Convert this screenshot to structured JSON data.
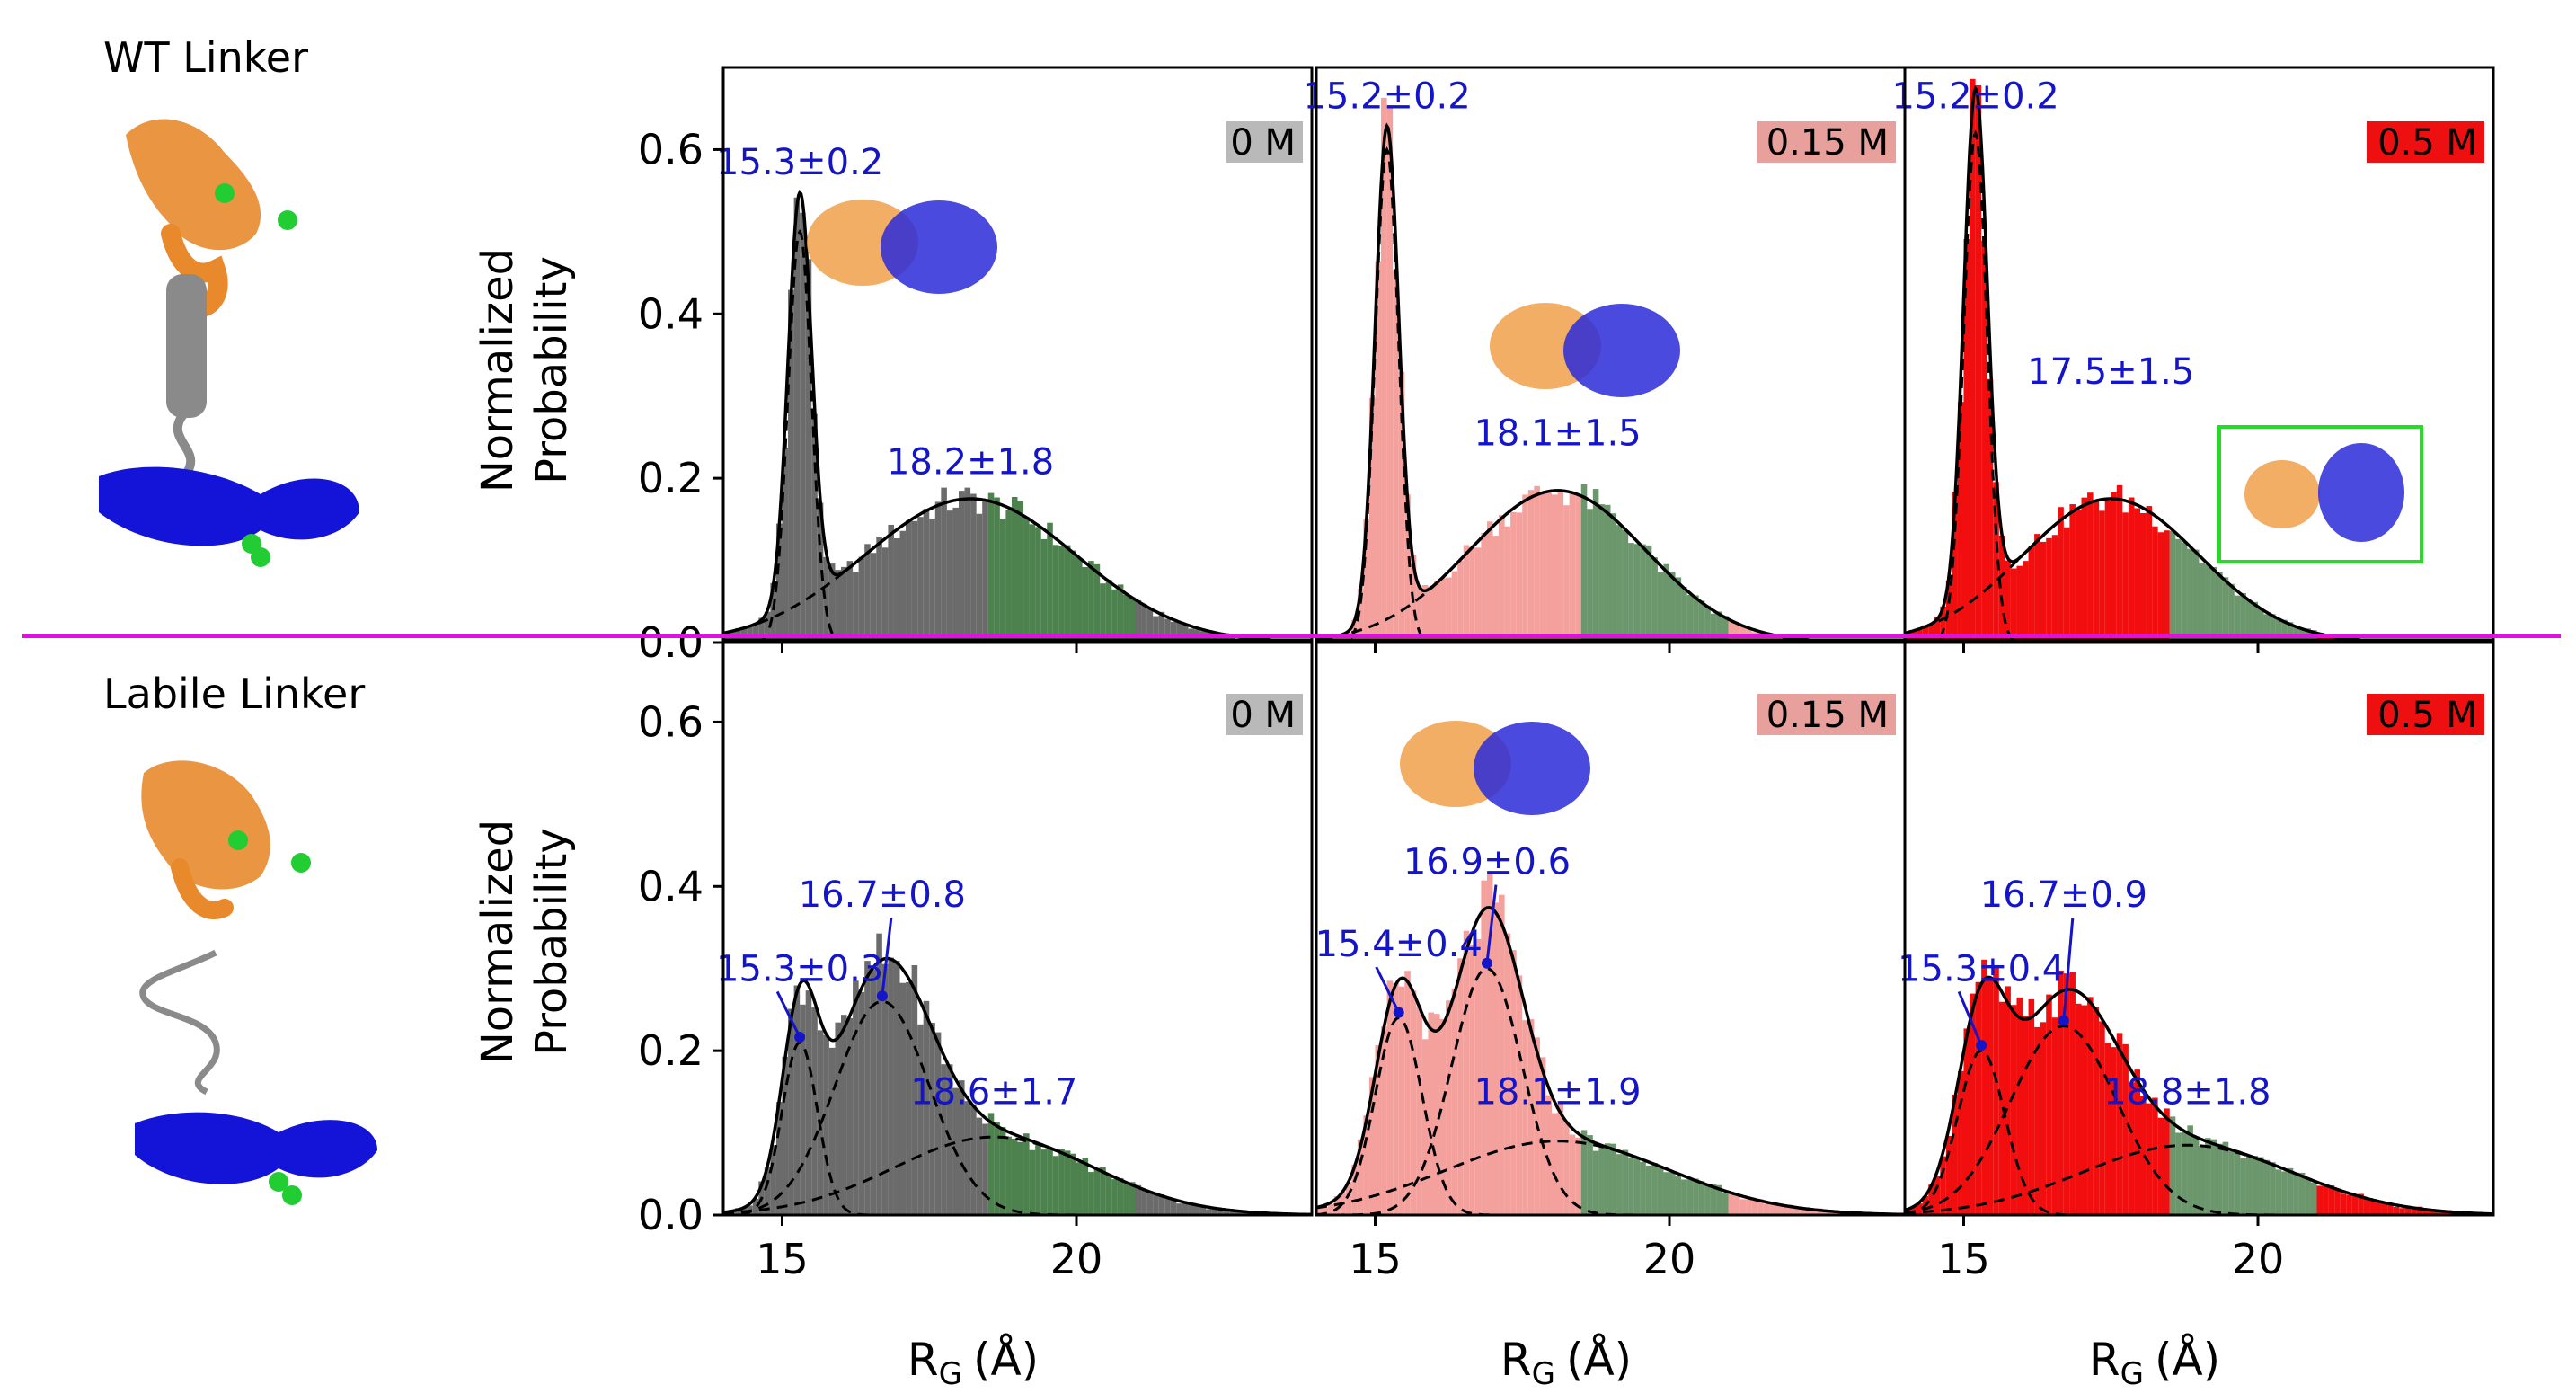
{
  "figure": {
    "row_labels": [
      "WT Linker",
      "Labile Linker"
    ],
    "ylabel_lines": [
      "Normalized",
      "Probability"
    ],
    "xlabel": {
      "main": "R",
      "sub": "G",
      "unit": "(Å)"
    },
    "colors": {
      "gray": "#6b6b6b",
      "salmon": "#f4a09c",
      "red": "#f20e0e",
      "green_tail": "#2e6b2e",
      "annotation": "#1414c8",
      "divider": "#e010e0",
      "inset_box": "#22dd22"
    }
  },
  "chart_data": [
    {
      "type": "histogram",
      "row": "WT Linker",
      "condition": "0 M",
      "badge_color": "#b9b9b9",
      "bar_color": "#6b6b6b",
      "xlim": [
        14,
        24
      ],
      "ylim": [
        0,
        0.7
      ],
      "xticks": [
        15,
        20
      ],
      "yticks": [
        0.0,
        0.2,
        0.4,
        0.6
      ],
      "ylabel": "Normalized Probability",
      "xlabel": "RG (Å)",
      "components": [
        {
          "mu": 15.3,
          "sd": 0.2,
          "peak": 0.5
        },
        {
          "mu": 18.2,
          "sd": 1.8,
          "peak": 0.175
        }
      ],
      "annotations": [
        {
          "text": "15.3±0.2",
          "x": 15.3,
          "y": 0.57
        },
        {
          "text": "18.2±1.8",
          "x": 18.2,
          "y": 0.205
        }
      ],
      "shaded_range": [
        18.5,
        21
      ]
    },
    {
      "type": "histogram",
      "row": "WT Linker",
      "condition": "0.15 M",
      "badge_color": "#e8a09c",
      "bar_color": "#f4a09c",
      "xlim": [
        14,
        24
      ],
      "ylim": [
        0,
        0.7
      ],
      "xticks": [
        15,
        20
      ],
      "yticks": [
        0.0,
        0.2,
        0.4,
        0.6
      ],
      "ylabel": "Normalized Probability",
      "xlabel": "RG (Å)",
      "components": [
        {
          "mu": 15.2,
          "sd": 0.2,
          "peak": 0.6
        },
        {
          "mu": 18.1,
          "sd": 1.5,
          "peak": 0.185
        }
      ],
      "annotations": [
        {
          "text": "15.2±0.2",
          "x": 15.2,
          "y": 0.65
        },
        {
          "text": "18.1±1.5",
          "x": 18.1,
          "y": 0.24
        }
      ],
      "shaded_range": [
        18.5,
        21
      ]
    },
    {
      "type": "histogram",
      "row": "WT Linker",
      "condition": "0.5 M",
      "badge_color": "#ee1010",
      "bar_color": "#f20e0e",
      "xlim": [
        14,
        24
      ],
      "ylim": [
        0,
        0.7
      ],
      "xticks": [
        15,
        20
      ],
      "yticks": [
        0.0,
        0.2,
        0.4,
        0.6
      ],
      "ylabel": "Normalized Probability",
      "xlabel": "RG (Å)",
      "components": [
        {
          "mu": 15.2,
          "sd": 0.2,
          "peak": 0.62
        },
        {
          "mu": 17.5,
          "sd": 1.5,
          "peak": 0.175
        }
      ],
      "annotations": [
        {
          "text": "15.2±0.2",
          "x": 15.2,
          "y": 0.65
        },
        {
          "text": "17.5±1.5",
          "x": 17.5,
          "y": 0.315
        }
      ],
      "shaded_range": [
        18.5,
        21
      ]
    },
    {
      "type": "histogram",
      "row": "Labile Linker",
      "condition": "0 M",
      "badge_color": "#b9b9b9",
      "bar_color": "#6b6b6b",
      "xlim": [
        14,
        24
      ],
      "ylim": [
        0,
        0.7
      ],
      "xticks": [
        15,
        20
      ],
      "yticks": [
        0.0,
        0.2,
        0.4,
        0.6
      ],
      "ylabel": "Normalized Probability",
      "xlabel": "RG (Å)",
      "components": [
        {
          "mu": 15.3,
          "sd": 0.3,
          "peak": 0.21
        },
        {
          "mu": 16.7,
          "sd": 0.8,
          "peak": 0.26
        },
        {
          "mu": 18.6,
          "sd": 1.7,
          "peak": 0.095
        }
      ],
      "annotations": [
        {
          "text": "15.3±0.3",
          "x": 15.3,
          "y": 0.285
        },
        {
          "text": "16.7±0.8",
          "x": 16.7,
          "y": 0.375
        },
        {
          "text": "18.6±1.7",
          "x": 18.6,
          "y": 0.135
        }
      ],
      "shaded_range": [
        18.5,
        21
      ]
    },
    {
      "type": "histogram",
      "row": "Labile Linker",
      "condition": "0.15 M",
      "badge_color": "#e8a09c",
      "bar_color": "#f4a09c",
      "xlim": [
        14,
        24
      ],
      "ylim": [
        0,
        0.7
      ],
      "xticks": [
        15,
        20
      ],
      "yticks": [
        0.0,
        0.2,
        0.4,
        0.6
      ],
      "ylabel": "Normalized Probability",
      "xlabel": "RG (Å)",
      "components": [
        {
          "mu": 15.4,
          "sd": 0.4,
          "peak": 0.24
        },
        {
          "mu": 16.9,
          "sd": 0.6,
          "peak": 0.3
        },
        {
          "mu": 18.1,
          "sd": 1.9,
          "peak": 0.09
        }
      ],
      "annotations": [
        {
          "text": "15.4±0.4",
          "x": 15.4,
          "y": 0.315
        },
        {
          "text": "16.9±0.6",
          "x": 16.9,
          "y": 0.415
        },
        {
          "text": "18.1±1.9",
          "x": 18.1,
          "y": 0.135
        }
      ],
      "shaded_range": [
        18.5,
        21
      ]
    },
    {
      "type": "histogram",
      "row": "Labile Linker",
      "condition": "0.5 M",
      "badge_color": "#ee1010",
      "bar_color": "#f20e0e",
      "xlim": [
        14,
        24
      ],
      "ylim": [
        0,
        0.7
      ],
      "xticks": [
        15,
        20
      ],
      "yticks": [
        0.0,
        0.2,
        0.4,
        0.6
      ],
      "ylabel": "Normalized Probability",
      "xlabel": "RG (Å)",
      "components": [
        {
          "mu": 15.3,
          "sd": 0.4,
          "peak": 0.2
        },
        {
          "mu": 16.7,
          "sd": 0.9,
          "peak": 0.23
        },
        {
          "mu": 18.8,
          "sd": 1.8,
          "peak": 0.085
        }
      ],
      "annotations": [
        {
          "text": "15.3±0.4",
          "x": 15.3,
          "y": 0.285
        },
        {
          "text": "16.7±0.9",
          "x": 16.7,
          "y": 0.375
        },
        {
          "text": "18.8±1.8",
          "x": 18.8,
          "y": 0.135
        }
      ],
      "shaded_range": [
        18.5,
        21
      ]
    }
  ]
}
